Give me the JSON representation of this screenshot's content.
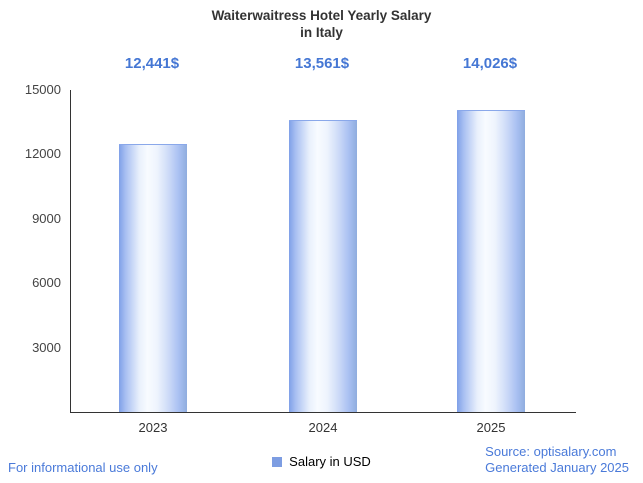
{
  "title": {
    "line1": "Waiterwaitress Hotel Yearly Salary",
    "line2": "in Italy"
  },
  "chart_data": {
    "type": "bar",
    "title": "Waiterwaitress Hotel Yearly Salary in Italy",
    "categories": [
      "2023",
      "2024",
      "2025"
    ],
    "values": [
      12441,
      13561,
      14026
    ],
    "value_labels": [
      "12,441$",
      "13,561$",
      "14,026$"
    ],
    "xlabel": "",
    "ylabel": "",
    "ylim": [
      0,
      15000
    ],
    "yticks": [
      3000,
      6000,
      9000,
      12000,
      15000
    ],
    "grid": false,
    "legend_position": "bottom",
    "legend": [
      {
        "label": "Salary in USD",
        "color": "#7d9de2"
      }
    ]
  },
  "colors": {
    "accent_blue": "#4a7ad9",
    "value_label_blue": "#4577d4",
    "bar_edge": "#7fa0e8",
    "bar_center": "#f8fbff",
    "axis": "#333333",
    "title_text": "#333333"
  },
  "footer": {
    "left_note": "For informational use only",
    "source": "Source: optisalary.com",
    "generated": "Generated January 2025"
  }
}
